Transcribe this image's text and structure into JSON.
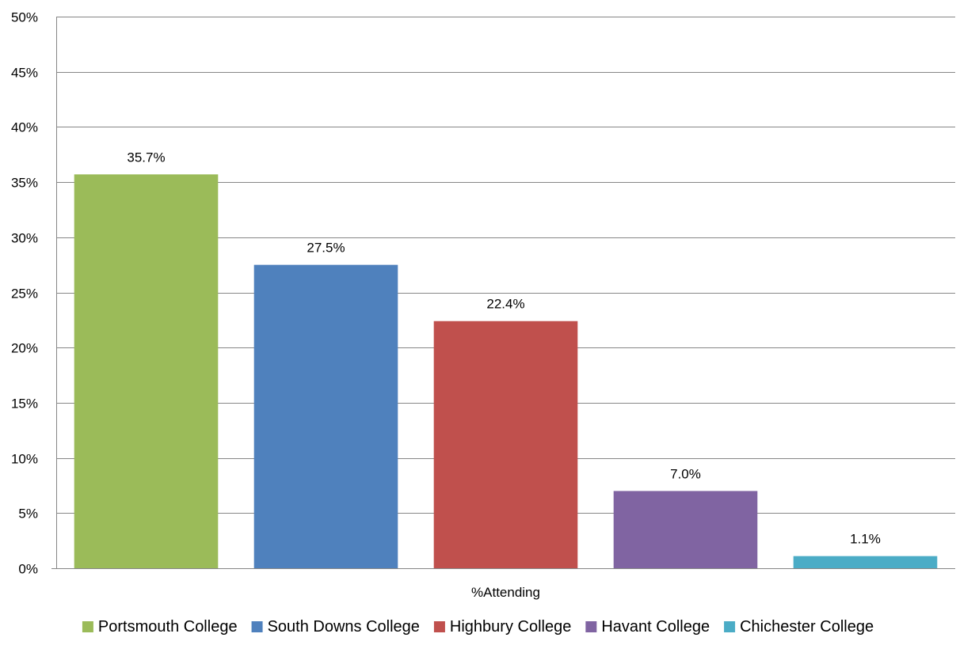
{
  "chart_data": {
    "type": "bar",
    "title": "",
    "xlabel": "",
    "ylabel": "",
    "category_label": "%Attending",
    "ylim": [
      0,
      50
    ],
    "y_ticks": [
      "0%",
      "5%",
      "10%",
      "15%",
      "20%",
      "25%",
      "30%",
      "35%",
      "40%",
      "45%",
      "50%"
    ],
    "y_tick_values": [
      0,
      5,
      10,
      15,
      20,
      25,
      30,
      35,
      40,
      45,
      50
    ],
    "grid": true,
    "legend_position": "bottom",
    "series": [
      {
        "name": "Portsmouth College",
        "value": 35.7,
        "label": "35.7%",
        "color": "#9BBB59"
      },
      {
        "name": "South Downs College",
        "value": 27.5,
        "label": "27.5%",
        "color": "#4F81BD"
      },
      {
        "name": "Highbury College",
        "value": 22.4,
        "label": "22.4%",
        "color": "#C0504D"
      },
      {
        "name": "Havant College",
        "value": 7.0,
        "label": "7.0%",
        "color": "#8064A2"
      },
      {
        "name": "Chichester College",
        "value": 1.1,
        "label": "1.1%",
        "color": "#4BACC6"
      }
    ]
  }
}
